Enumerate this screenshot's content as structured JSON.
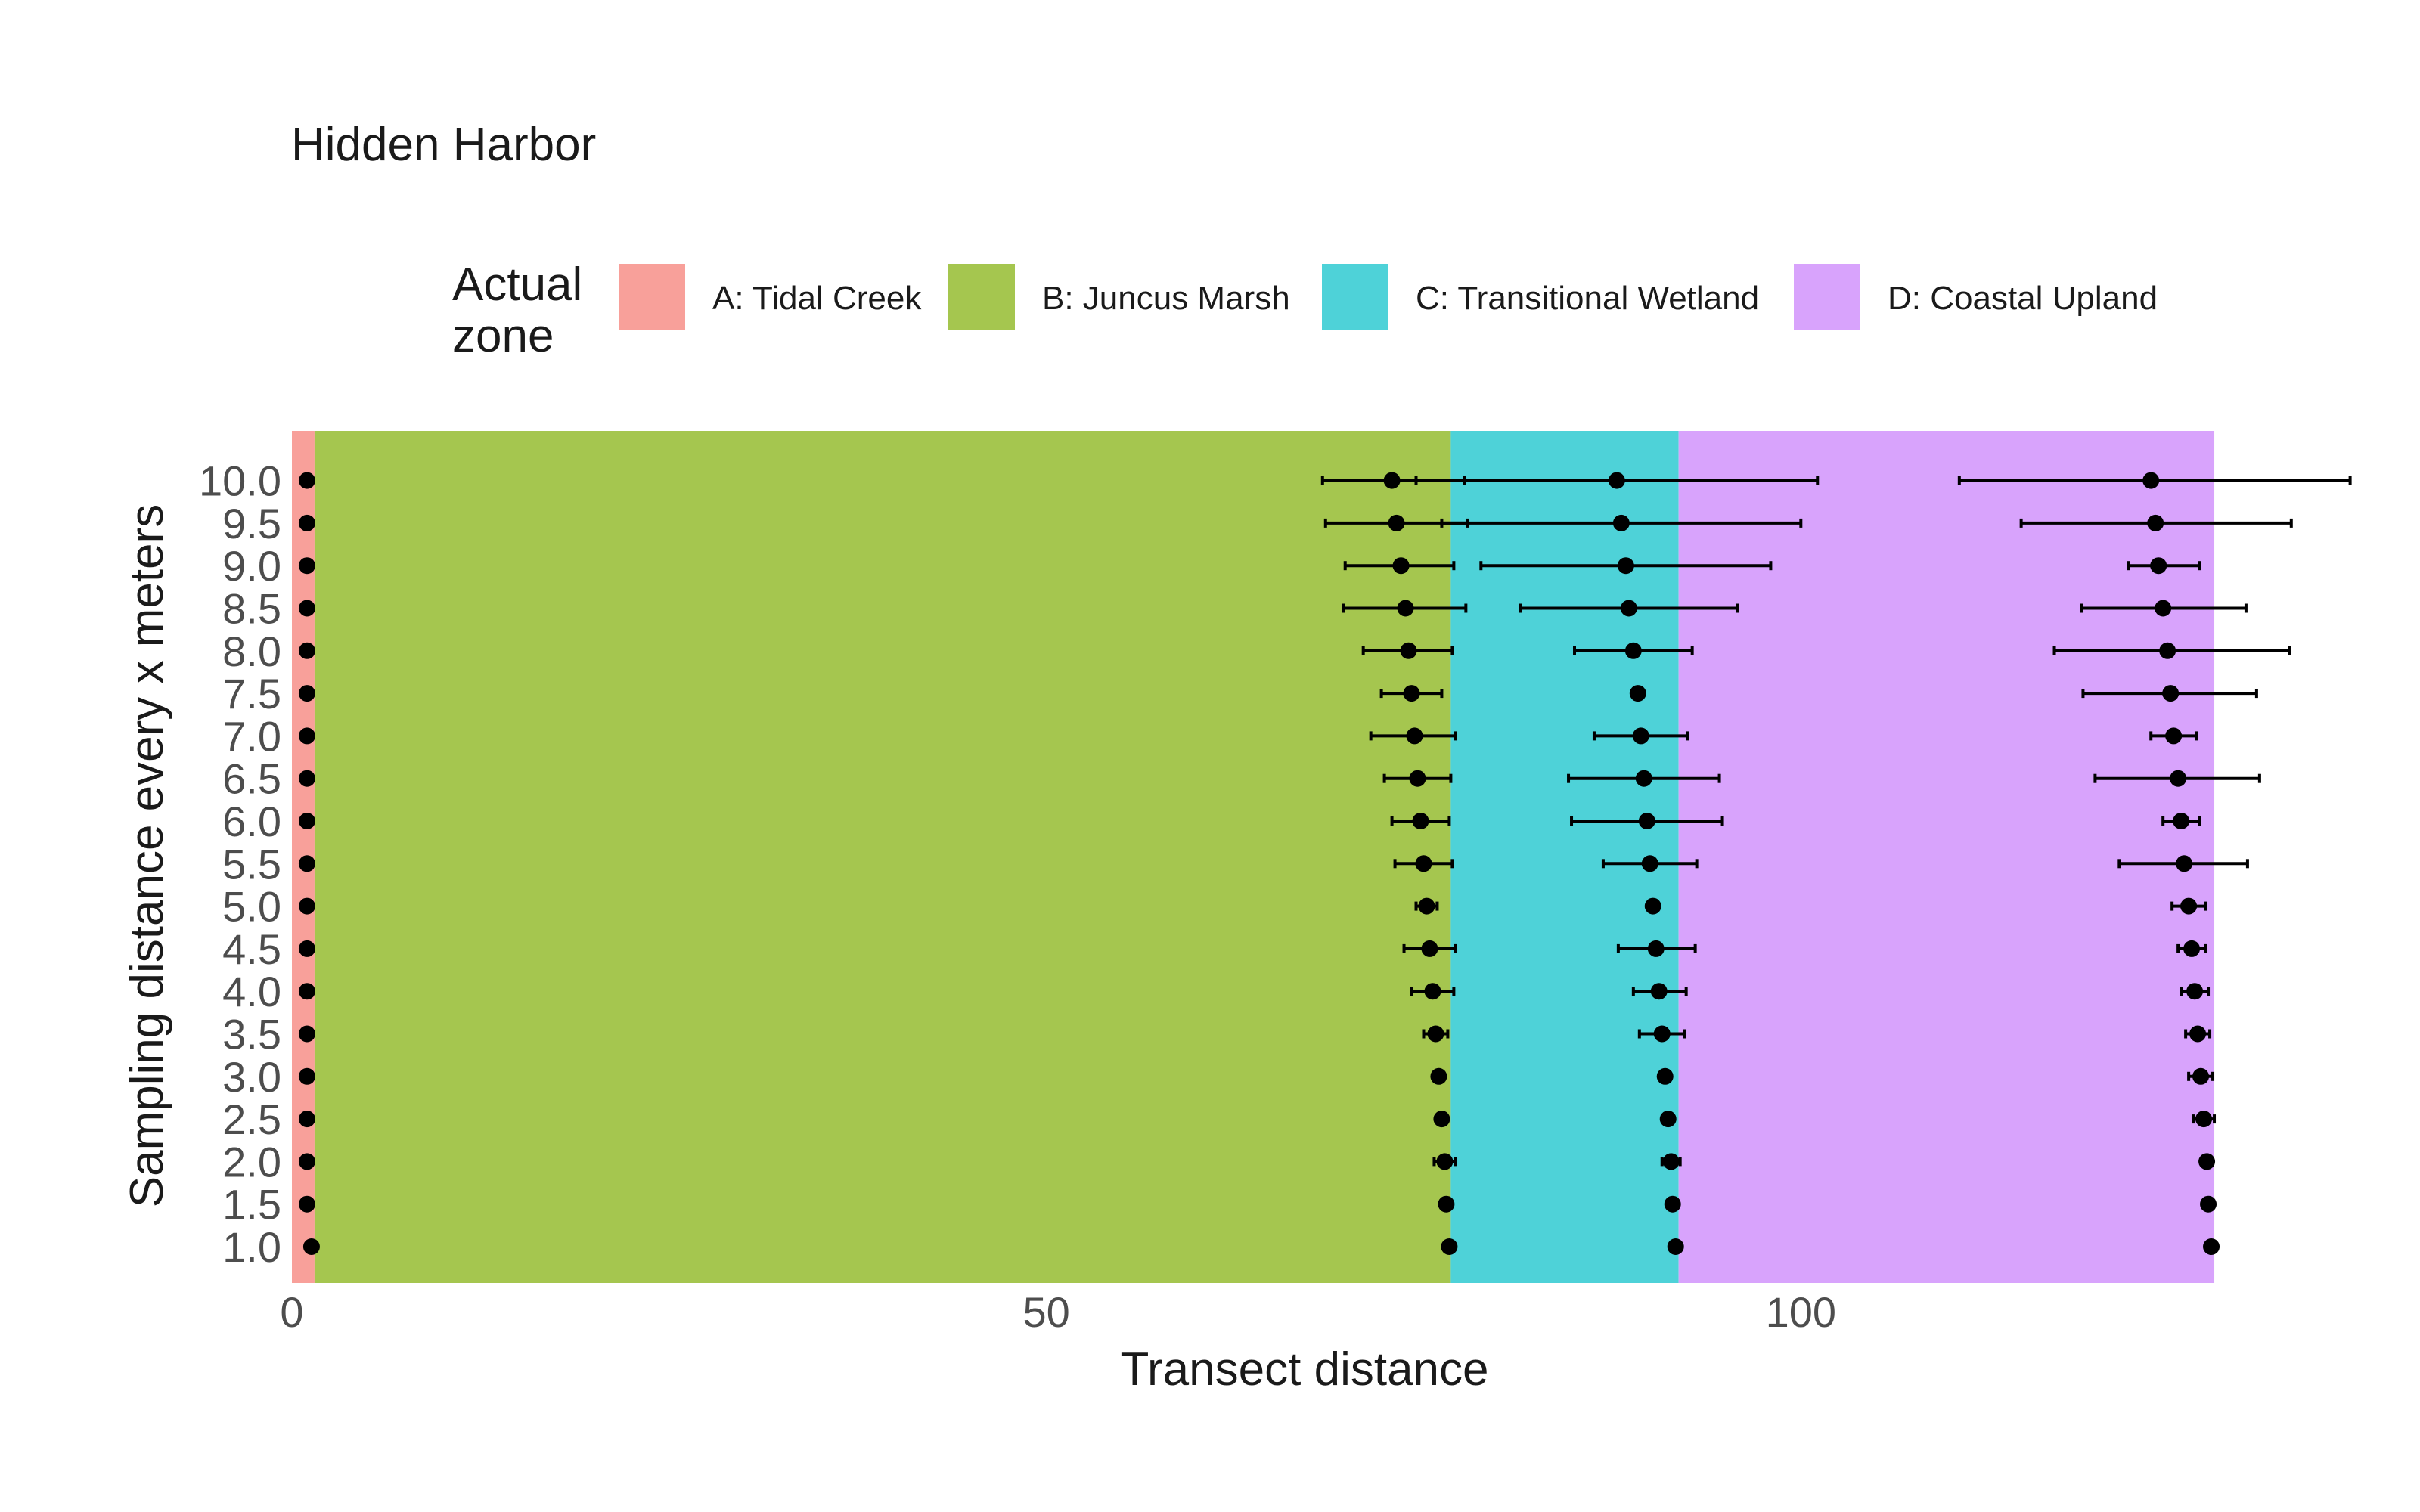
{
  "chart_data": {
    "type": "scatter",
    "title": "Hidden Harbor",
    "xlabel": "Transect distance",
    "ylabel": "Sampling distance every x meters",
    "xlim": [
      0,
      128
    ],
    "x_ticks": [
      "0",
      "50",
      "100"
    ],
    "x_tick_values": [
      0,
      50,
      100
    ],
    "y_categories": [
      "1.0",
      "1.5",
      "2.0",
      "2.5",
      "3.0",
      "3.5",
      "4.0",
      "4.5",
      "5.0",
      "5.5",
      "6.0",
      "6.5",
      "7.0",
      "7.5",
      "8.0",
      "8.5",
      "9.0",
      "9.5",
      "10.0"
    ],
    "grid": false,
    "legend": {
      "title_lines": [
        "Actual",
        "zone"
      ],
      "position": "top",
      "entries": [
        {
          "label": "A: Tidal Creek",
          "color": "#F8A09A"
        },
        {
          "label": "B: Juncus Marsh",
          "color": "#A5C64F"
        },
        {
          "label": "C: Transitional Wetland",
          "color": "#4ED2D8"
        },
        {
          "label": "D: Coastal Upland",
          "color": "#D8A3FC"
        }
      ]
    },
    "zones": [
      {
        "label": "A: Tidal Creek",
        "x_start": 0,
        "x_end": 1.5,
        "color": "#F8A09A"
      },
      {
        "label": "B: Juncus Marsh",
        "x_start": 1.5,
        "x_end": 76.8,
        "color": "#A5C64F"
      },
      {
        "label": "C: Transitional Wetland",
        "x_start": 76.8,
        "x_end": 91.9,
        "color": "#4ED2D8"
      },
      {
        "label": "D: Coastal Upland",
        "x_start": 91.9,
        "x_end": 127.4,
        "color": "#D8A3FC"
      }
    ],
    "series": [
      {
        "boundary": "A-B",
        "points": [
          {
            "y": "1.0",
            "x": 1.3,
            "lo": 1.3,
            "hi": 1.3
          },
          {
            "y": "1.5",
            "x": 1.0,
            "lo": 1.0,
            "hi": 1.0
          },
          {
            "y": "2.0",
            "x": 1.0,
            "lo": 1.0,
            "hi": 1.0
          },
          {
            "y": "2.5",
            "x": 1.0,
            "lo": 1.0,
            "hi": 1.0
          },
          {
            "y": "3.0",
            "x": 1.0,
            "lo": 1.0,
            "hi": 1.0
          },
          {
            "y": "3.5",
            "x": 1.0,
            "lo": 1.0,
            "hi": 1.0
          },
          {
            "y": "4.0",
            "x": 1.0,
            "lo": 1.0,
            "hi": 1.0
          },
          {
            "y": "4.5",
            "x": 1.0,
            "lo": 1.0,
            "hi": 1.0
          },
          {
            "y": "5.0",
            "x": 1.0,
            "lo": 1.0,
            "hi": 1.0
          },
          {
            "y": "5.5",
            "x": 1.0,
            "lo": 1.0,
            "hi": 1.0
          },
          {
            "y": "6.0",
            "x": 1.0,
            "lo": 1.0,
            "hi": 1.0
          },
          {
            "y": "6.5",
            "x": 1.0,
            "lo": 1.0,
            "hi": 1.0
          },
          {
            "y": "7.0",
            "x": 1.0,
            "lo": 1.0,
            "hi": 1.0
          },
          {
            "y": "7.5",
            "x": 1.0,
            "lo": 1.0,
            "hi": 1.0
          },
          {
            "y": "8.0",
            "x": 1.0,
            "lo": 1.0,
            "hi": 1.0
          },
          {
            "y": "8.5",
            "x": 1.0,
            "lo": 1.0,
            "hi": 1.0
          },
          {
            "y": "9.0",
            "x": 1.0,
            "lo": 1.0,
            "hi": 1.0
          },
          {
            "y": "9.5",
            "x": 1.0,
            "lo": 1.0,
            "hi": 1.0
          },
          {
            "y": "10.0",
            "x": 1.0,
            "lo": 1.0,
            "hi": 1.0
          }
        ]
      },
      {
        "boundary": "B-C",
        "points": [
          {
            "y": "1.0",
            "x": 76.7,
            "lo": 76.7,
            "hi": 76.7
          },
          {
            "y": "1.5",
            "x": 76.5,
            "lo": 76.5,
            "hi": 76.5
          },
          {
            "y": "2.0",
            "x": 76.4,
            "lo": 75.7,
            "hi": 77.1
          },
          {
            "y": "2.5",
            "x": 76.2,
            "lo": 76.2,
            "hi": 76.2
          },
          {
            "y": "3.0",
            "x": 76.0,
            "lo": 76.0,
            "hi": 76.0
          },
          {
            "y": "3.5",
            "x": 75.8,
            "lo": 75.0,
            "hi": 76.6
          },
          {
            "y": "4.0",
            "x": 75.6,
            "lo": 74.2,
            "hi": 77.0
          },
          {
            "y": "4.5",
            "x": 75.4,
            "lo": 73.7,
            "hi": 77.1
          },
          {
            "y": "5.0",
            "x": 75.2,
            "lo": 74.5,
            "hi": 75.9
          },
          {
            "y": "5.5",
            "x": 75.0,
            "lo": 73.1,
            "hi": 76.9
          },
          {
            "y": "6.0",
            "x": 74.8,
            "lo": 72.9,
            "hi": 76.7
          },
          {
            "y": "6.5",
            "x": 74.6,
            "lo": 72.4,
            "hi": 76.8
          },
          {
            "y": "7.0",
            "x": 74.4,
            "lo": 71.5,
            "hi": 77.1
          },
          {
            "y": "7.5",
            "x": 74.2,
            "lo": 72.2,
            "hi": 76.2
          },
          {
            "y": "8.0",
            "x": 74.0,
            "lo": 71.0,
            "hi": 76.9
          },
          {
            "y": "8.5",
            "x": 73.8,
            "lo": 69.7,
            "hi": 77.8
          },
          {
            "y": "9.0",
            "x": 73.5,
            "lo": 69.8,
            "hi": 77.0
          },
          {
            "y": "9.5",
            "x": 73.2,
            "lo": 68.5,
            "hi": 77.9
          },
          {
            "y": "10.0",
            "x": 72.9,
            "lo": 68.3,
            "hi": 77.7
          }
        ]
      },
      {
        "boundary": "C-D",
        "points": [
          {
            "y": "1.0",
            "x": 91.7,
            "lo": 91.7,
            "hi": 91.7
          },
          {
            "y": "1.5",
            "x": 91.5,
            "lo": 91.5,
            "hi": 91.5
          },
          {
            "y": "2.0",
            "x": 91.4,
            "lo": 90.8,
            "hi": 92.0
          },
          {
            "y": "2.5",
            "x": 91.2,
            "lo": 91.2,
            "hi": 91.2
          },
          {
            "y": "3.0",
            "x": 91.0,
            "lo": 91.0,
            "hi": 91.0
          },
          {
            "y": "3.5",
            "x": 90.8,
            "lo": 89.3,
            "hi": 92.3
          },
          {
            "y": "4.0",
            "x": 90.6,
            "lo": 88.9,
            "hi": 92.4
          },
          {
            "y": "4.5",
            "x": 90.4,
            "lo": 87.9,
            "hi": 93.0
          },
          {
            "y": "5.0",
            "x": 90.2,
            "lo": 90.2,
            "hi": 90.2
          },
          {
            "y": "5.5",
            "x": 90.0,
            "lo": 86.9,
            "hi": 93.1
          },
          {
            "y": "6.0",
            "x": 89.8,
            "lo": 84.8,
            "hi": 94.8
          },
          {
            "y": "6.5",
            "x": 89.6,
            "lo": 84.6,
            "hi": 94.6
          },
          {
            "y": "7.0",
            "x": 89.4,
            "lo": 86.3,
            "hi": 92.5
          },
          {
            "y": "7.5",
            "x": 89.2,
            "lo": 89.2,
            "hi": 89.2
          },
          {
            "y": "8.0",
            "x": 88.9,
            "lo": 85.0,
            "hi": 92.8
          },
          {
            "y": "8.5",
            "x": 88.6,
            "lo": 81.4,
            "hi": 95.8
          },
          {
            "y": "9.0",
            "x": 88.4,
            "lo": 78.8,
            "hi": 98.0
          },
          {
            "y": "9.5",
            "x": 88.1,
            "lo": 76.2,
            "hi": 100.0
          },
          {
            "y": "10.0",
            "x": 87.8,
            "lo": 74.5,
            "hi": 101.1
          }
        ]
      },
      {
        "boundary": "D-end",
        "points": [
          {
            "y": "1.0",
            "x": 127.2,
            "lo": 127.2,
            "hi": 127.2
          },
          {
            "y": "1.5",
            "x": 127.0,
            "lo": 127.0,
            "hi": 127.0
          },
          {
            "y": "2.0",
            "x": 126.9,
            "lo": 126.9,
            "hi": 126.9
          },
          {
            "y": "2.5",
            "x": 126.7,
            "lo": 126.0,
            "hi": 127.4
          },
          {
            "y": "3.0",
            "x": 126.5,
            "lo": 125.7,
            "hi": 127.3
          },
          {
            "y": "3.5",
            "x": 126.3,
            "lo": 125.5,
            "hi": 127.1
          },
          {
            "y": "4.0",
            "x": 126.1,
            "lo": 125.2,
            "hi": 127.0
          },
          {
            "y": "4.5",
            "x": 125.9,
            "lo": 125.0,
            "hi": 126.8
          },
          {
            "y": "5.0",
            "x": 125.7,
            "lo": 124.6,
            "hi": 126.8
          },
          {
            "y": "5.5",
            "x": 125.4,
            "lo": 121.1,
            "hi": 129.6
          },
          {
            "y": "6.0",
            "x": 125.2,
            "lo": 124.0,
            "hi": 126.4
          },
          {
            "y": "6.5",
            "x": 125.0,
            "lo": 119.5,
            "hi": 130.4
          },
          {
            "y": "7.0",
            "x": 124.7,
            "lo": 123.2,
            "hi": 126.2
          },
          {
            "y": "7.5",
            "x": 124.5,
            "lo": 118.7,
            "hi": 130.2
          },
          {
            "y": "8.0",
            "x": 124.3,
            "lo": 116.8,
            "hi": 132.4
          },
          {
            "y": "8.5",
            "x": 124.0,
            "lo": 118.6,
            "hi": 129.5
          },
          {
            "y": "9.0",
            "x": 123.7,
            "lo": 121.7,
            "hi": 126.4
          },
          {
            "y": "9.5",
            "x": 123.5,
            "lo": 114.6,
            "hi": 132.5
          },
          {
            "y": "10.0",
            "x": 123.2,
            "lo": 110.5,
            "hi": 136.4
          }
        ]
      }
    ]
  }
}
